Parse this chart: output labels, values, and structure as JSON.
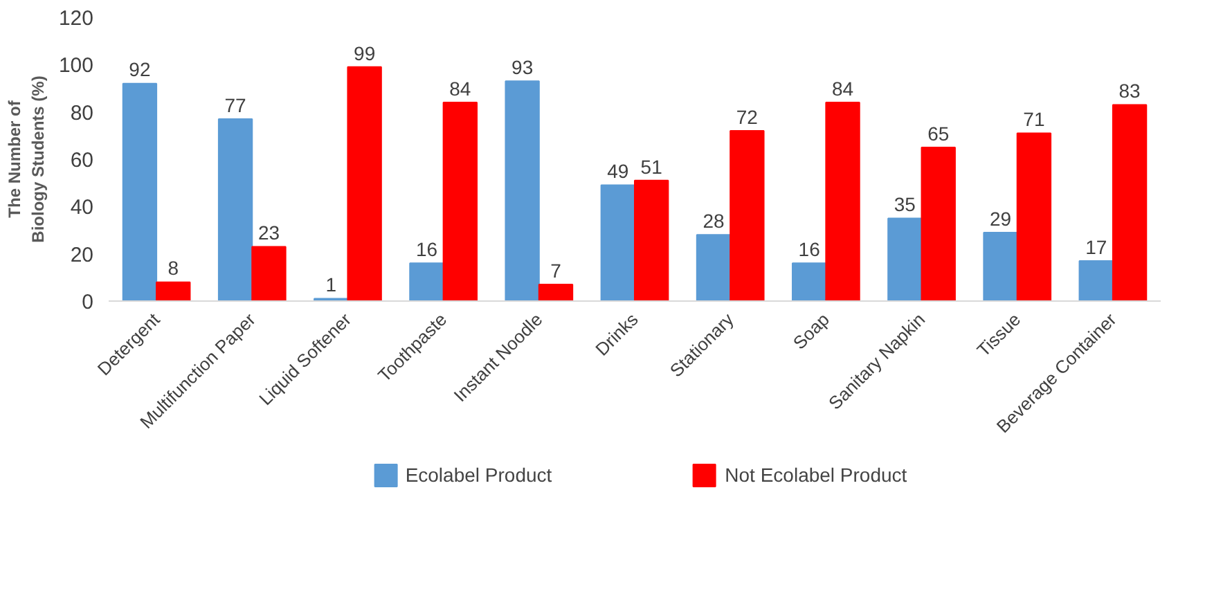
{
  "chart_data": {
    "type": "bar",
    "ylabel": "The Number of Biology Students (%)",
    "categories": [
      "Detergent",
      "Multifunction Paper",
      "Liquid Softener",
      "Toothpaste",
      "Instant Noodle",
      "Drinks",
      "Stationary",
      "Soap",
      "Sanitary Napkin",
      "Tissue",
      "Beverage Container"
    ],
    "series": [
      {
        "name": "Ecolabel Product",
        "color": "#5b9bd5",
        "values": [
          92,
          77,
          1,
          16,
          93,
          49,
          28,
          16,
          35,
          29,
          17
        ]
      },
      {
        "name": "Not Ecolabel Product",
        "color": "#ff0000",
        "values": [
          8,
          23,
          99,
          84,
          7,
          51,
          72,
          84,
          65,
          71,
          83
        ]
      }
    ],
    "ylim": [
      0,
      120
    ],
    "yticks": [
      0,
      20,
      40,
      60,
      80,
      100,
      120
    ],
    "grid": false,
    "legend": "bottom",
    "data_labels": true
  }
}
